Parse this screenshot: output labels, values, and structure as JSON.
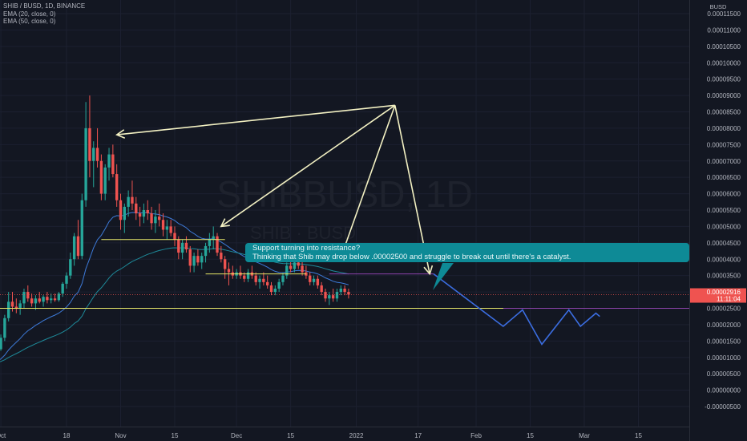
{
  "legend": {
    "symbol": "SHIB / BUSD, 1D, BINANCE",
    "ema20": "EMA (20, close, 0)",
    "ema50": "EMA (50, close, 0)"
  },
  "watermark": {
    "main": "SHIBBUSD, 1D",
    "sub": "SHIB · BUSD"
  },
  "currency": "BUSD",
  "callout": {
    "line1": "Support turning into resistance?",
    "line2": "Thinking that Shib may drop below .00002500 and struggle to break out until there's a catalyst."
  },
  "price_tag": {
    "price": "0.00002916",
    "countdown": "11:11:04"
  },
  "colors": {
    "up": "#26a69a",
    "down": "#ef5350",
    "ema20": "#3d7ad8",
    "ema50": "#1e8a9a",
    "support": "#e7e76a",
    "projection": "#3b6de0",
    "arrows": "#f2f0c2",
    "resistance": "#8e44ad",
    "callout": "#0e8a96"
  },
  "chart_data": {
    "type": "candlestick",
    "y_axis_labels": [
      "0.00011500",
      "0.00011000",
      "0.00010500",
      "0.00010000",
      "0.00009500",
      "0.00009000",
      "0.00008500",
      "0.00008000",
      "0.00007500",
      "0.00007000",
      "0.00006500",
      "0.00006000",
      "0.00005500",
      "0.00005000",
      "0.00004500",
      "0.00004000",
      "0.00003500",
      "0.00003000",
      "0.00002500",
      "0.00002000",
      "0.00001500",
      "0.00001000",
      "0.00000500",
      "0.00000000",
      "-0.00000500"
    ],
    "ylim": [
      -5e-06,
      0.00012
    ],
    "x_axis_labels": [
      {
        "label": "Oct",
        "date": "2021-10-01"
      },
      {
        "label": "18",
        "date": "2021-10-18"
      },
      {
        "label": "Nov",
        "date": "2021-11-01"
      },
      {
        "label": "15",
        "date": "2021-11-15"
      },
      {
        "label": "Dec",
        "date": "2021-12-01"
      },
      {
        "label": "15",
        "date": "2021-12-15"
      },
      {
        "label": "2022",
        "date": "2022-01-01"
      },
      {
        "label": "17",
        "date": "2022-01-17"
      },
      {
        "label": "Feb",
        "date": "2022-02-01"
      },
      {
        "label": "15",
        "date": "2022-02-15"
      },
      {
        "label": "Mar",
        "date": "2022-03-01"
      },
      {
        "label": "15",
        "date": "2022-03-15"
      }
    ],
    "candle_start": "2021-09-25",
    "ohlc": [
      [
        8e-06,
        8.5e-06,
        7.5e-06,
        8.2e-06
      ],
      [
        8.2e-06,
        8.8e-06,
        7.8e-06,
        8.4e-06
      ],
      [
        8.4e-06,
        9.2e-06,
        8e-06,
        8.8e-06
      ],
      [
        8.8e-06,
        9.5e-06,
        8.3e-06,
        8.6e-06
      ],
      [
        8.6e-06,
        1e-05,
        8.4e-06,
        9.8e-06
      ],
      [
        9.8e-06,
        1.3e-05,
        9.5e-06,
        1.25e-05
      ],
      [
        1.25e-05,
        1.7e-05,
        1.2e-05,
        1.6e-05
      ],
      [
        1.6e-05,
        2.3e-05,
        1.5e-05,
        2.2e-05
      ],
      [
        2.2e-05,
        3e-05,
        2.1e-05,
        2.7e-05
      ],
      [
        2.7e-05,
        3e-05,
        2.4e-05,
        2.55e-05
      ],
      [
        2.55e-05,
        2.8e-05,
        2.35e-05,
        2.5e-05
      ],
      [
        2.5e-05,
        2.75e-05,
        2.3e-05,
        2.65e-05
      ],
      [
        2.65e-05,
        3.1e-05,
        2.5e-05,
        3e-05
      ],
      [
        3e-05,
        3.2e-05,
        2.7e-05,
        2.8e-05
      ],
      [
        2.8e-05,
        2.95e-05,
        2.55e-05,
        2.65e-05
      ],
      [
        2.65e-05,
        2.9e-05,
        2.45e-05,
        2.8e-05
      ],
      [
        2.8e-05,
        3e-05,
        2.65e-05,
        2.7e-05
      ],
      [
        2.7e-05,
        2.9e-05,
        2.55e-05,
        2.85e-05
      ],
      [
        2.85e-05,
        3e-05,
        2.65e-05,
        2.75e-05
      ],
      [
        2.75e-05,
        2.95e-05,
        2.65e-05,
        2.8e-05
      ],
      [
        2.8e-05,
        2.95e-05,
        2.7e-05,
        2.75e-05
      ],
      [
        2.75e-05,
        3e-05,
        2.7e-05,
        2.95e-05
      ],
      [
        2.95e-05,
        3.3e-05,
        2.85e-05,
        3.25e-05
      ],
      [
        3.25e-05,
        3.6e-05,
        3.1e-05,
        3.5e-05
      ],
      [
        3.5e-05,
        4.2e-05,
        3.4e-05,
        4e-05
      ],
      [
        4e-05,
        4.8e-05,
        3.8e-05,
        4.7e-05
      ],
      [
        4.7e-05,
        5.2e-05,
        4e-05,
        4.1e-05
      ],
      [
        4.1e-05,
        6e-05,
        4e-05,
        5.8e-05
      ],
      [
        5.8e-05,
        8.8e-05,
        5.6e-05,
        8e-05
      ],
      [
        8e-05,
        9e-05,
        6.5e-05,
        7e-05
      ],
      [
        7e-05,
        7.6e-05,
        6.2e-05,
        7.4e-05
      ],
      [
        7.4e-05,
        8e-05,
        6.8e-05,
        7e-05
      ],
      [
        7e-05,
        7.2e-05,
        5.8e-05,
        6e-05
      ],
      [
        6e-05,
        6.9e-05,
        5.8e-05,
        6.8e-05
      ],
      [
        6.8e-05,
        7.4e-05,
        6.4e-05,
        7.2e-05
      ],
      [
        7.2e-05,
        7.5e-05,
        6.5e-05,
        6.6e-05
      ],
      [
        6.6e-05,
        6.9e-05,
        5.6e-05,
        5.8e-05
      ],
      [
        5.8e-05,
        6e-05,
        4.9e-05,
        5.2e-05
      ],
      [
        5.2e-05,
        5.7e-05,
        4.8e-05,
        5.6e-05
      ],
      [
        5.6e-05,
        6.1e-05,
        5.3e-05,
        5.9e-05
      ],
      [
        5.9e-05,
        6.4e-05,
        5.5e-05,
        5.7e-05
      ],
      [
        5.7e-05,
        5.9e-05,
        5.2e-05,
        5.4e-05
      ],
      [
        5.4e-05,
        5.6e-05,
        5e-05,
        5.3e-05
      ],
      [
        5.3e-05,
        5.7e-05,
        5.1e-05,
        5.5e-05
      ],
      [
        5.5e-05,
        5.8e-05,
        5.2e-05,
        5.4e-05
      ],
      [
        5.4e-05,
        5.6e-05,
        4.9e-05,
        5.1e-05
      ],
      [
        5.1e-05,
        5.5e-05,
        4.8e-05,
        5.3e-05
      ],
      [
        5.3e-05,
        5.7e-05,
        5e-05,
        5.2e-05
      ],
      [
        5.2e-05,
        5.4e-05,
        4.7e-05,
        4.9e-05
      ],
      [
        4.9e-05,
        5.2e-05,
        4.6e-05,
        5e-05
      ],
      [
        5e-05,
        5.2e-05,
        4.7e-05,
        4.8e-05
      ],
      [
        4.8e-05,
        5e-05,
        4.4e-05,
        4.6e-05
      ],
      [
        4.6e-05,
        4.7e-05,
        4e-05,
        4.2e-05
      ],
      [
        4.2e-05,
        4.6e-05,
        4e-05,
        4.5e-05
      ],
      [
        4.5e-05,
        4.7e-05,
        4.2e-05,
        4.3e-05
      ],
      [
        4.3e-05,
        4.4e-05,
        3.6e-05,
        3.8e-05
      ],
      [
        3.8e-05,
        4.2e-05,
        3.6e-05,
        4.1e-05
      ],
      [
        4.1e-05,
        4.3e-05,
        3.8e-05,
        3.9e-05
      ],
      [
        3.9e-05,
        4.2e-05,
        3.7e-05,
        4.1e-05
      ],
      [
        4.1e-05,
        4.5e-05,
        3.9e-05,
        4.4e-05
      ],
      [
        4.4e-05,
        4.8e-05,
        4.2e-05,
        4.6e-05
      ],
      [
        4.6e-05,
        5e-05,
        4.3e-05,
        4.7e-05
      ],
      [
        4.7e-05,
        4.8e-05,
        4.1e-05,
        4.2e-05
      ],
      [
        4.2e-05,
        4.4e-05,
        3.9e-05,
        4e-05
      ],
      [
        4e-05,
        4.1e-05,
        3.4e-05,
        3.7e-05
      ],
      [
        3.7e-05,
        3.9e-05,
        3.2e-05,
        3.6e-05
      ],
      [
        3.6e-05,
        3.8e-05,
        3.4e-05,
        3.5e-05
      ],
      [
        3.5e-05,
        3.7e-05,
        3.4e-05,
        3.6e-05
      ],
      [
        3.6e-05,
        3.8e-05,
        3.4e-05,
        3.5e-05
      ],
      [
        3.5e-05,
        3.6e-05,
        3.3e-05,
        3.4e-05
      ],
      [
        3.4e-05,
        3.7e-05,
        3.3e-05,
        3.6e-05
      ],
      [
        3.6e-05,
        3.8e-05,
        3.4e-05,
        3.5e-05
      ],
      [
        3.5e-05,
        3.6e-05,
        3.2e-05,
        3.3e-05
      ],
      [
        3.3e-05,
        3.5e-05,
        3.1e-05,
        3.4e-05
      ],
      [
        3.4e-05,
        3.6e-05,
        3.2e-05,
        3.3e-05
      ],
      [
        3.3e-05,
        3.5e-05,
        3.1e-05,
        3.2e-05
      ],
      [
        3.2e-05,
        3.3e-05,
        2.9e-05,
        3e-05
      ],
      [
        3e-05,
        3.2e-05,
        2.9e-05,
        3.1e-05
      ],
      [
        3.1e-05,
        3.4e-05,
        3e-05,
        3.3e-05
      ],
      [
        3.3e-05,
        3.6e-05,
        3.2e-05,
        3.5e-05
      ],
      [
        3.5e-05,
        3.9e-05,
        3.4e-05,
        3.8e-05
      ],
      [
        3.8e-05,
        4e-05,
        3.6e-05,
        3.7e-05
      ],
      [
        3.7e-05,
        4e-05,
        3.6e-05,
        3.9e-05
      ],
      [
        3.9e-05,
        4.1e-05,
        3.7e-05,
        3.8e-05
      ],
      [
        3.8e-05,
        4e-05,
        3.5e-05,
        3.6e-05
      ],
      [
        3.6e-05,
        3.8e-05,
        3.4e-05,
        3.5e-05
      ],
      [
        3.5e-05,
        3.6e-05,
        3.2e-05,
        3.3e-05
      ],
      [
        3.3e-05,
        3.5e-05,
        3.2e-05,
        3.4e-05
      ],
      [
        3.4e-05,
        3.5e-05,
        3.1e-05,
        3.2e-05
      ],
      [
        3.2e-05,
        3.3e-05,
        2.9e-05,
        3e-05
      ],
      [
        3e-05,
        3.1e-05,
        2.7e-05,
        2.8e-05
      ],
      [
        2.8e-05,
        3e-05,
        2.6e-05,
        2.9e-05
      ],
      [
        2.9e-05,
        3.1e-05,
        2.7e-05,
        2.8e-05
      ],
      [
        2.8e-05,
        3.1e-05,
        2.7e-05,
        3e-05
      ],
      [
        3e-05,
        3.2e-05,
        2.9e-05,
        3.1e-05
      ],
      [
        3.1e-05,
        3.2e-05,
        2.9e-05,
        3e-05
      ],
      [
        3e-05,
        3.1e-05,
        2.8e-05,
        2.92e-05
      ]
    ],
    "ema20_note": "EMA (20, close, 0)",
    "ema50_note": "EMA (50, close, 0)",
    "annotations": {
      "support_level": 2.5e-05,
      "support_zones": [
        {
          "from": "2021-10-27",
          "to": "2021-11-28",
          "price": 4.6e-05
        },
        {
          "from": "2021-11-23",
          "to": "2021-12-19",
          "price": 3.55e-05
        }
      ],
      "resistance_level": 3.55e-05,
      "projection": [
        [
          "2022-01-21",
          3.55e-05
        ],
        [
          "2022-02-08",
          1.95e-05
        ],
        [
          "2022-02-13",
          2.45e-05
        ],
        [
          "2022-02-18",
          1.4e-05
        ],
        [
          "2022-02-25",
          2.45e-05
        ],
        [
          "2022-02-28",
          1.95e-05
        ],
        [
          "2022-03-04",
          2.35e-05
        ],
        [
          "2022-03-05",
          2.25e-05
        ]
      ],
      "arrow_origin": [
        "2022-01-11",
        8.7e-05
      ],
      "arrow_targets": [
        [
          "2021-10-31",
          7.8e-05
        ],
        [
          "2021-11-27",
          5e-05
        ],
        [
          "2021-12-28",
          4.05e-05
        ],
        [
          "2022-01-20",
          3.55e-05
        ]
      ]
    }
  }
}
